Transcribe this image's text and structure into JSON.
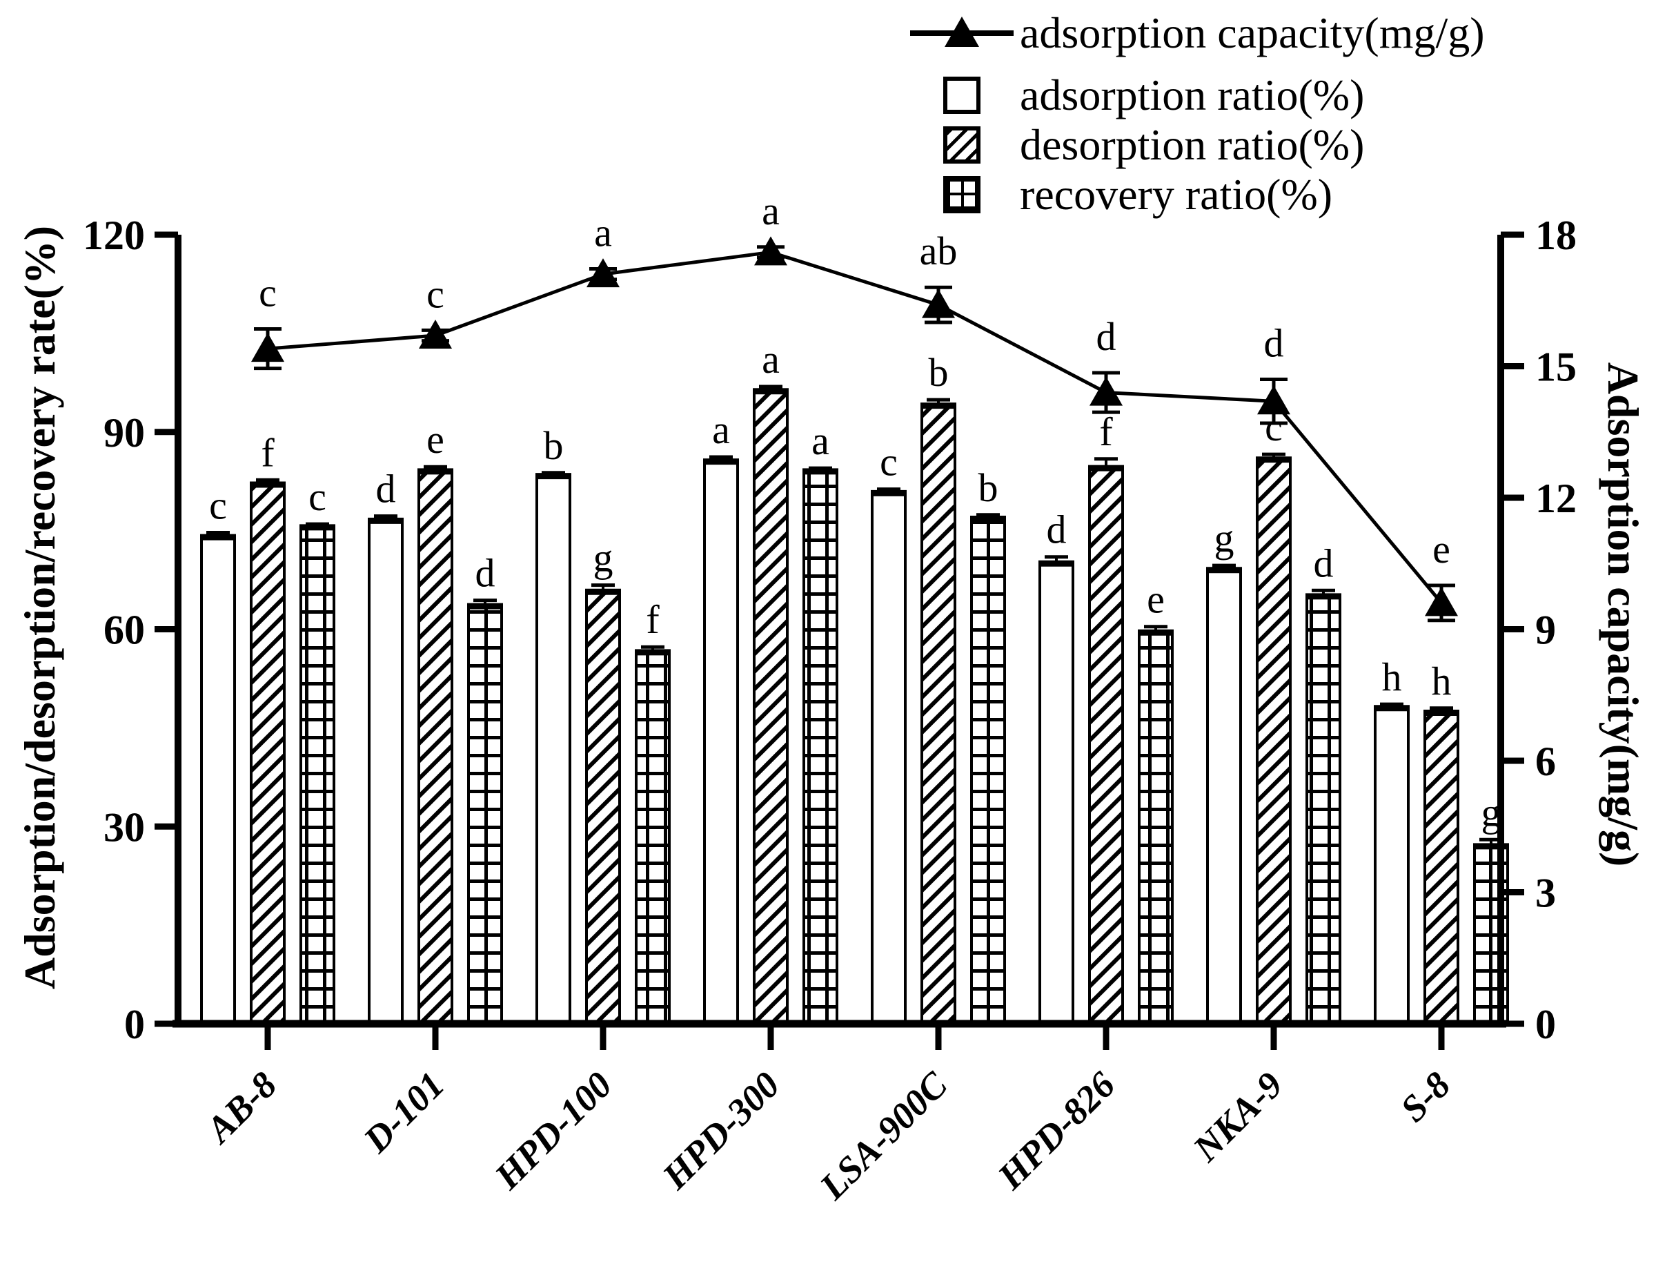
{
  "figure": {
    "left_axis": {
      "title": "Adsorption/desorption/recovery rate(%)",
      "ticks": [
        0,
        30,
        60,
        90,
        120
      ],
      "max": 120
    },
    "right_axis": {
      "title": "Adsorption capacity(mg/g)",
      "ticks": [
        0,
        3,
        6,
        9,
        12,
        15,
        18
      ],
      "max": 18
    },
    "legend": [
      {
        "label": "adsorption capacity(mg/g)",
        "symbol": "triangle-line"
      },
      {
        "label": "adsorption ratio(%)",
        "symbol": "open-bar"
      },
      {
        "label": "desorption ratio(%)",
        "symbol": "diagonal-hatch-bar"
      },
      {
        "label": "recovery ratio(%)",
        "symbol": "grid-hatch-bar"
      }
    ],
    "colors": {
      "foreground": "#000000",
      "background": "#ffffff"
    }
  },
  "chart_data": {
    "type": "bar",
    "subtype": "grouped bars with overlaid line on secondary axis",
    "categories": [
      "AB-8",
      "D-101",
      "HPD-100",
      "HPD-300",
      "LSA-900C",
      "HPD-826",
      "NKA-9",
      "S-8"
    ],
    "left_ylim": [
      0,
      120
    ],
    "right_ylim": [
      0,
      18
    ],
    "grid": "off",
    "legend_position": "top-right",
    "series": [
      {
        "name": "adsorption ratio(%)",
        "axis": "left",
        "type": "bar",
        "style": "open",
        "values": [
          74,
          76.5,
          83.3,
          85.5,
          80.7,
          70,
          69,
          48
        ],
        "errors": [
          0.7,
          0.7,
          0.5,
          0.7,
          0.6,
          1.0,
          0.7,
          0.6
        ],
        "letters": [
          "c",
          "d",
          "b",
          "a",
          "c",
          "d",
          "g",
          "h"
        ]
      },
      {
        "name": "desorption ratio(%)",
        "axis": "left",
        "type": "bar",
        "style": "diagonal-hatch",
        "values": [
          82,
          84,
          65.7,
          96.2,
          94,
          84.5,
          85.8,
          47.3
        ],
        "errors": [
          0.7,
          0.7,
          1.0,
          0.7,
          0.9,
          1.4,
          0.8,
          0.7
        ],
        "letters": [
          "f",
          "e",
          "g",
          "a",
          "b",
          "f",
          "c",
          "h"
        ]
      },
      {
        "name": "recovery ratio(%)",
        "axis": "left",
        "type": "bar",
        "style": "grid-hatch",
        "values": [
          75.5,
          63.5,
          56.5,
          84,
          76.8,
          59.5,
          65,
          27
        ],
        "errors": [
          0.5,
          0.9,
          0.8,
          0.5,
          0.6,
          0.9,
          0.9,
          1.0
        ],
        "letters": [
          "c",
          "d",
          "f",
          "a",
          "b",
          "e",
          "d",
          "g"
        ]
      },
      {
        "name": "adsorption capacity(mg/g)",
        "axis": "right",
        "type": "line",
        "marker": "filled-triangle",
        "values": [
          15.4,
          15.7,
          17.1,
          17.6,
          16.4,
          14.4,
          14.2,
          9.6
        ],
        "errors": [
          0.45,
          0.12,
          0.12,
          0.12,
          0.4,
          0.45,
          0.5,
          0.4
        ],
        "letters": [
          "c",
          "c",
          "a",
          "a",
          "ab",
          "d",
          "d",
          "e"
        ]
      }
    ]
  }
}
